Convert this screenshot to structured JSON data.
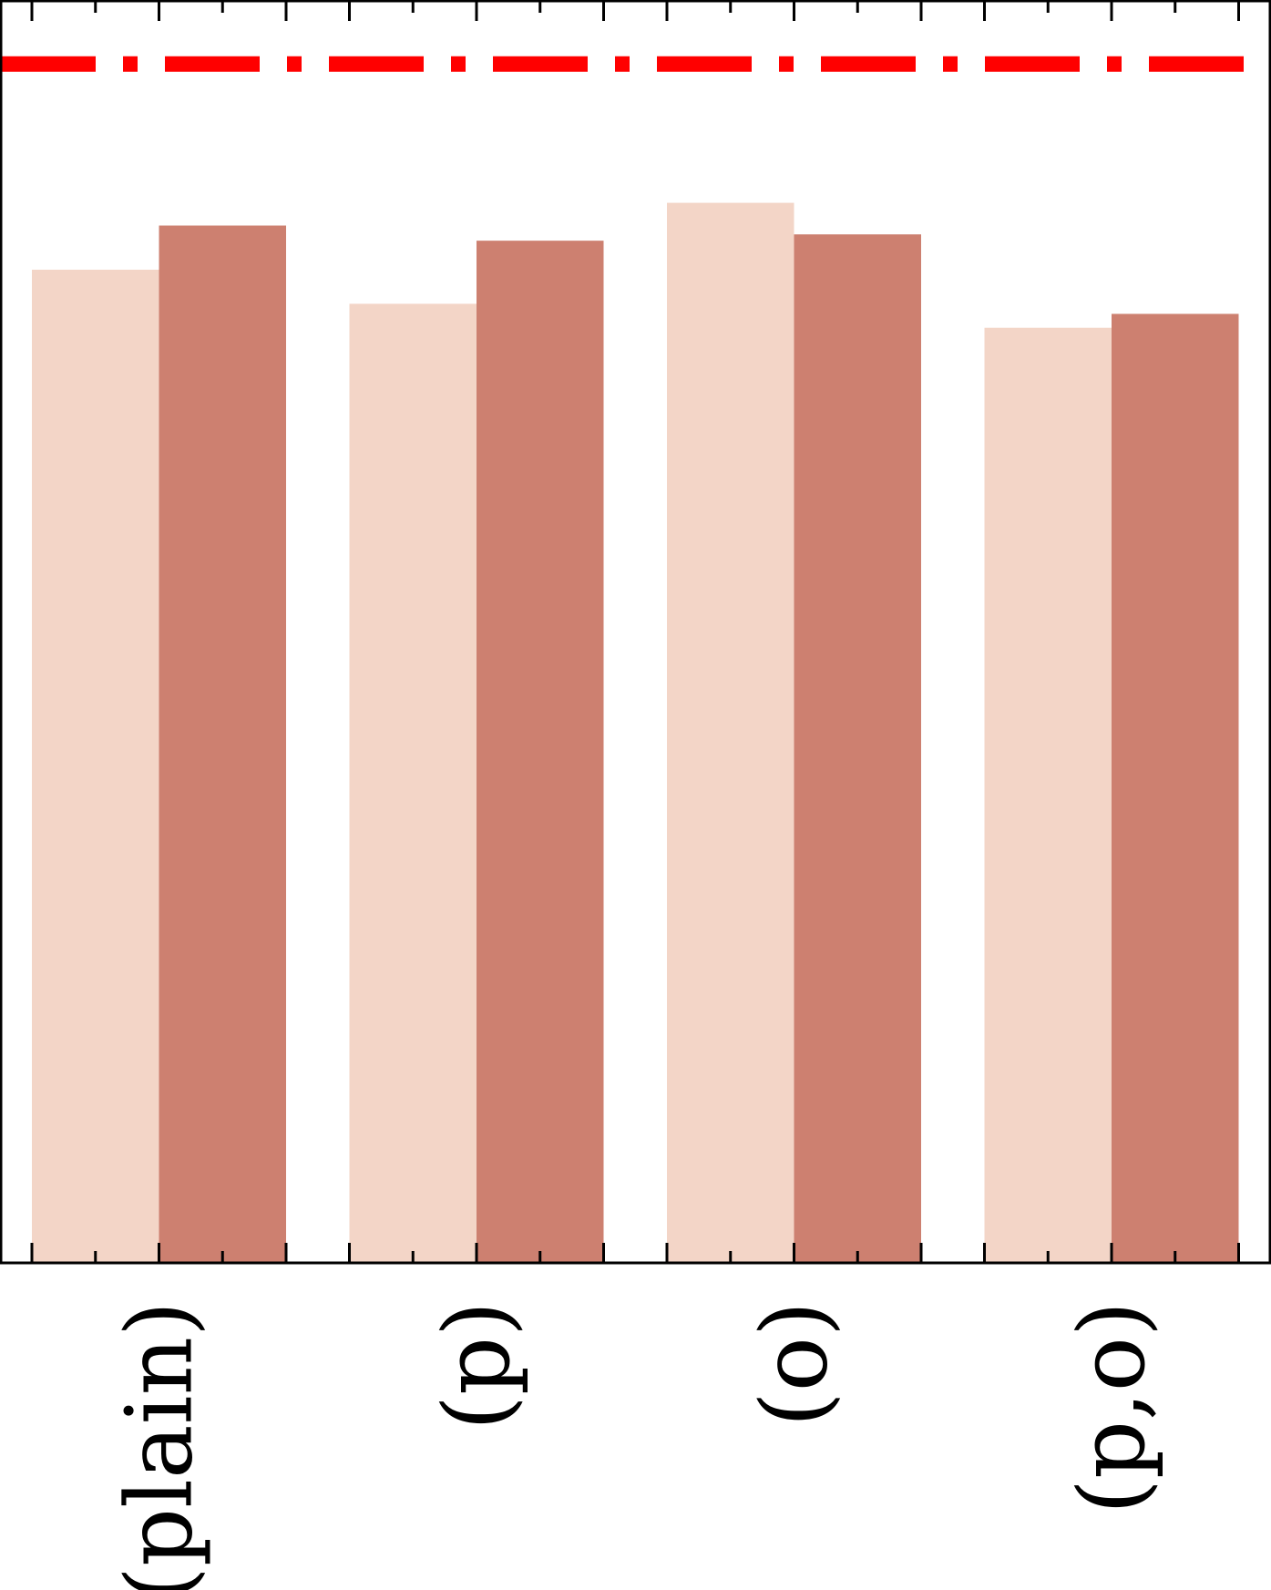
{
  "chart_data": {
    "type": "bar",
    "categories": [
      "(plain)",
      "(p)",
      "(o)",
      "(p,o)"
    ],
    "series": [
      {
        "values": [
          0.787,
          0.76,
          0.84,
          0.741
        ]
      },
      {
        "values": [
          0.822,
          0.81,
          0.815,
          0.752
        ]
      }
    ],
    "reference_line": {
      "value": 0.95,
      "style": "dash-dot"
    },
    "title": "",
    "xlabel": "",
    "ylabel": "",
    "ylim": [
      0,
      1
    ],
    "y_tick_labels_shown": false,
    "grid": false,
    "legend": "none",
    "colors": {
      "series": [
        "#f3d5c7",
        "#cd8070"
      ],
      "reference_line": "#ff0000",
      "axes": "#000000"
    }
  }
}
